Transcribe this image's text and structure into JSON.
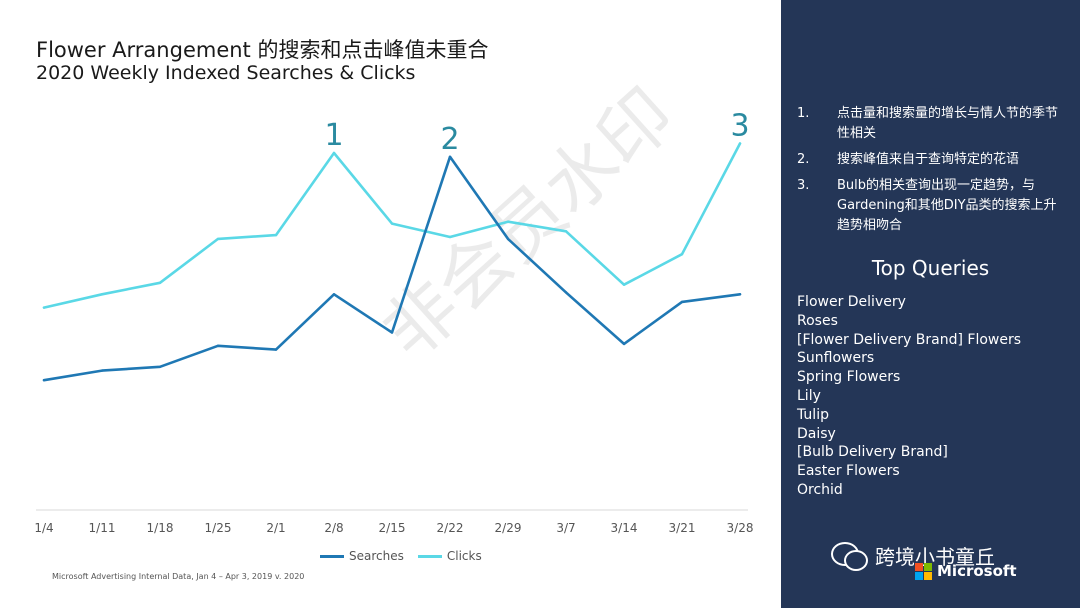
{
  "header": {
    "title": "Flower Arrangement 的搜索和点击峰值未重合",
    "subtitle": "2020 Weekly Indexed Searches & Clicks"
  },
  "chart_data": {
    "type": "line",
    "title": "Flower Arrangement 的搜索和点击峰值未重合",
    "subtitle": "2020 Weekly Indexed Searches & Clicks",
    "x": [
      "1/4",
      "1/11",
      "1/18",
      "1/25",
      "2/1",
      "2/8",
      "2/15",
      "2/22",
      "2/29",
      "3/7",
      "3/14",
      "3/21",
      "3/28"
    ],
    "series": [
      {
        "name": "Searches",
        "color": "#1f78b4",
        "values": [
          28,
          33,
          35,
          46,
          44,
          73,
          53,
          145,
          102,
          74,
          47,
          69,
          73
        ]
      },
      {
        "name": "Clicks",
        "color": "#5ad8e6",
        "values": [
          66,
          73,
          79,
          102,
          104,
          147,
          110,
          103,
          111,
          106,
          78,
          94,
          152
        ]
      }
    ],
    "ylim": [
      -40,
      180
    ],
    "grid": false,
    "legend": "bottom",
    "annotations": [
      {
        "label": "1",
        "x": "2/8",
        "near_series": "Clicks"
      },
      {
        "label": "2",
        "x": "2/22",
        "near_series": "Searches"
      },
      {
        "label": "3",
        "x": "3/28",
        "near_series": "Clicks"
      }
    ]
  },
  "footnote": "Microsoft Advertising Internal Data, Jan 4 – Apr 3, 2019 v. 2020",
  "watermark": "非会员水印",
  "side_panel": {
    "notes": [
      {
        "num": "1.",
        "text": "点击量和搜索量的增长与情人节的季节性相关"
      },
      {
        "num": "2.",
        "text": "搜索峰值来自于查询特定的花语"
      },
      {
        "num": "3.",
        "text": "Bulb的相关查询出现一定趋势，与Gardening和其他DIY品类的搜索上升趋势相吻合"
      }
    ],
    "queries_title": "Top Queries",
    "queries": [
      "Flower Delivery",
      "Roses",
      "[Flower Delivery Brand] Flowers",
      "Sunflowers",
      "Spring Flowers",
      "Lily",
      "Tulip",
      "Daisy",
      "[Bulb Delivery Brand]",
      "Easter Flowers",
      "Orchid"
    ],
    "brand_text": "跨境小书童丘",
    "logo_text": "Microsoft",
    "icons": [
      "wechat-icon",
      "microsoft-logo-icon"
    ],
    "background_color": "#243657"
  }
}
